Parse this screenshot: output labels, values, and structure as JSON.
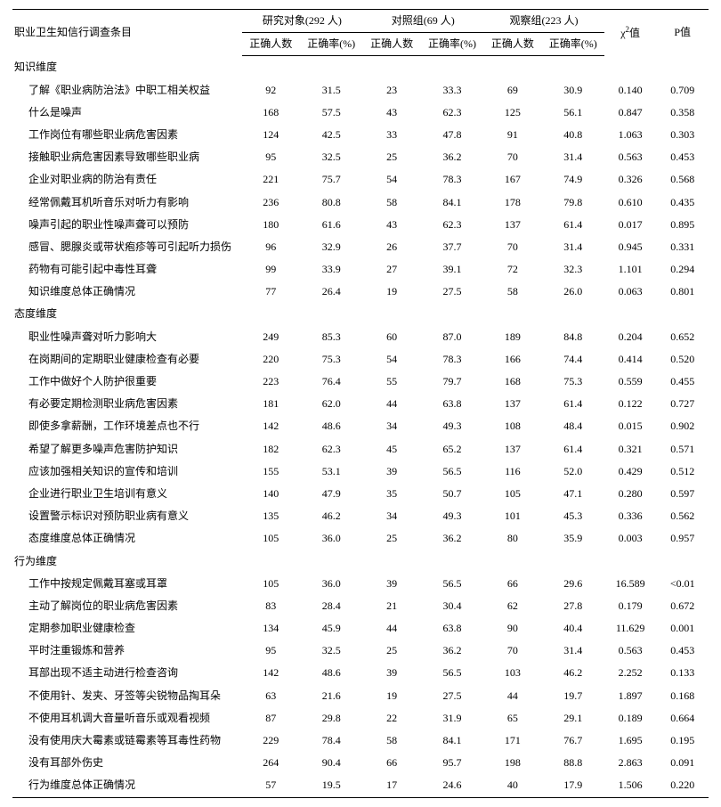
{
  "header": {
    "col_label": "职业卫生知信行调查条目",
    "groups": [
      {
        "title": "研究对象(292 人)",
        "sub1": "正确人数",
        "sub2": "正确率(%)"
      },
      {
        "title": "对照组(69 人)",
        "sub1": "正确人数",
        "sub2": "正确率(%)"
      },
      {
        "title": "观察组(223 人)",
        "sub1": "正确人数",
        "sub2": "正确率(%)"
      }
    ],
    "chi_label": "χ²值",
    "p_label": "P值"
  },
  "sections": [
    {
      "title": "知识维度",
      "rows": [
        {
          "label": "了解《职业病防治法》中职工相关权益",
          "v": [
            "92",
            "31.5",
            "23",
            "33.3",
            "69",
            "30.9",
            "0.140",
            "0.709"
          ]
        },
        {
          "label": "什么是噪声",
          "v": [
            "168",
            "57.5",
            "43",
            "62.3",
            "125",
            "56.1",
            "0.847",
            "0.358"
          ]
        },
        {
          "label": "工作岗位有哪些职业病危害因素",
          "v": [
            "124",
            "42.5",
            "33",
            "47.8",
            "91",
            "40.8",
            "1.063",
            "0.303"
          ]
        },
        {
          "label": "接触职业病危害因素导致哪些职业病",
          "v": [
            "95",
            "32.5",
            "25",
            "36.2",
            "70",
            "31.4",
            "0.563",
            "0.453"
          ]
        },
        {
          "label": "企业对职业病的防治有责任",
          "v": [
            "221",
            "75.7",
            "54",
            "78.3",
            "167",
            "74.9",
            "0.326",
            "0.568"
          ]
        },
        {
          "label": "经常佩戴耳机听音乐对听力有影响",
          "v": [
            "236",
            "80.8",
            "58",
            "84.1",
            "178",
            "79.8",
            "0.610",
            "0.435"
          ]
        },
        {
          "label": "噪声引起的职业性噪声聋可以预防",
          "v": [
            "180",
            "61.6",
            "43",
            "62.3",
            "137",
            "61.4",
            "0.017",
            "0.895"
          ]
        },
        {
          "label": "感冒、腮腺炎或带状疱疹等可引起听力损伤",
          "v": [
            "96",
            "32.9",
            "26",
            "37.7",
            "70",
            "31.4",
            "0.945",
            "0.331"
          ]
        },
        {
          "label": "药物有可能引起中毒性耳聋",
          "v": [
            "99",
            "33.9",
            "27",
            "39.1",
            "72",
            "32.3",
            "1.101",
            "0.294"
          ]
        },
        {
          "label": "知识维度总体正确情况",
          "v": [
            "77",
            "26.4",
            "19",
            "27.5",
            "58",
            "26.0",
            "0.063",
            "0.801"
          ]
        }
      ]
    },
    {
      "title": "态度维度",
      "rows": [
        {
          "label": "职业性噪声聋对听力影响大",
          "v": [
            "249",
            "85.3",
            "60",
            "87.0",
            "189",
            "84.8",
            "0.204",
            "0.652"
          ]
        },
        {
          "label": "在岗期间的定期职业健康检查有必要",
          "v": [
            "220",
            "75.3",
            "54",
            "78.3",
            "166",
            "74.4",
            "0.414",
            "0.520"
          ]
        },
        {
          "label": "工作中做好个人防护很重要",
          "v": [
            "223",
            "76.4",
            "55",
            "79.7",
            "168",
            "75.3",
            "0.559",
            "0.455"
          ]
        },
        {
          "label": "有必要定期检测职业病危害因素",
          "v": [
            "181",
            "62.0",
            "44",
            "63.8",
            "137",
            "61.4",
            "0.122",
            "0.727"
          ]
        },
        {
          "label": "即使多拿薪酬，工作环境差点也不行",
          "v": [
            "142",
            "48.6",
            "34",
            "49.3",
            "108",
            "48.4",
            "0.015",
            "0.902"
          ]
        },
        {
          "label": "希望了解更多噪声危害防护知识",
          "v": [
            "182",
            "62.3",
            "45",
            "65.2",
            "137",
            "61.4",
            "0.321",
            "0.571"
          ]
        },
        {
          "label": "应该加强相关知识的宣传和培训",
          "v": [
            "155",
            "53.1",
            "39",
            "56.5",
            "116",
            "52.0",
            "0.429",
            "0.512"
          ]
        },
        {
          "label": "企业进行职业卫生培训有意义",
          "v": [
            "140",
            "47.9",
            "35",
            "50.7",
            "105",
            "47.1",
            "0.280",
            "0.597"
          ]
        },
        {
          "label": "设置警示标识对预防职业病有意义",
          "v": [
            "135",
            "46.2",
            "34",
            "49.3",
            "101",
            "45.3",
            "0.336",
            "0.562"
          ]
        },
        {
          "label": "态度维度总体正确情况",
          "v": [
            "105",
            "36.0",
            "25",
            "36.2",
            "80",
            "35.9",
            "0.003",
            "0.957"
          ]
        }
      ]
    },
    {
      "title": "行为维度",
      "rows": [
        {
          "label": "工作中按规定佩戴耳塞或耳罩",
          "v": [
            "105",
            "36.0",
            "39",
            "56.5",
            "66",
            "29.6",
            "16.589",
            "<0.01"
          ]
        },
        {
          "label": "主动了解岗位的职业病危害因素",
          "v": [
            "83",
            "28.4",
            "21",
            "30.4",
            "62",
            "27.8",
            "0.179",
            "0.672"
          ]
        },
        {
          "label": "定期参加职业健康检查",
          "v": [
            "134",
            "45.9",
            "44",
            "63.8",
            "90",
            "40.4",
            "11.629",
            "0.001"
          ]
        },
        {
          "label": "平时注重锻炼和营养",
          "v": [
            "95",
            "32.5",
            "25",
            "36.2",
            "70",
            "31.4",
            "0.563",
            "0.453"
          ]
        },
        {
          "label": "耳部出现不适主动进行检查咨询",
          "v": [
            "142",
            "48.6",
            "39",
            "56.5",
            "103",
            "46.2",
            "2.252",
            "0.133"
          ]
        },
        {
          "label": "不使用针、发夹、牙签等尖锐物品掏耳朵",
          "v": [
            "63",
            "21.6",
            "19",
            "27.5",
            "44",
            "19.7",
            "1.897",
            "0.168"
          ]
        },
        {
          "label": "不使用耳机调大音量听音乐或观看视频",
          "v": [
            "87",
            "29.8",
            "22",
            "31.9",
            "65",
            "29.1",
            "0.189",
            "0.664"
          ]
        },
        {
          "label": "没有使用庆大霉素或链霉素等耳毒性药物",
          "v": [
            "229",
            "78.4",
            "58",
            "84.1",
            "171",
            "76.7",
            "1.695",
            "0.195"
          ]
        },
        {
          "label": "没有耳部外伤史",
          "v": [
            "264",
            "90.4",
            "66",
            "95.7",
            "198",
            "88.8",
            "2.863",
            "0.091"
          ]
        },
        {
          "label": "行为维度总体正确情况",
          "v": [
            "57",
            "19.5",
            "17",
            "24.6",
            "40",
            "17.9",
            "1.506",
            "0.220"
          ]
        }
      ]
    }
  ]
}
